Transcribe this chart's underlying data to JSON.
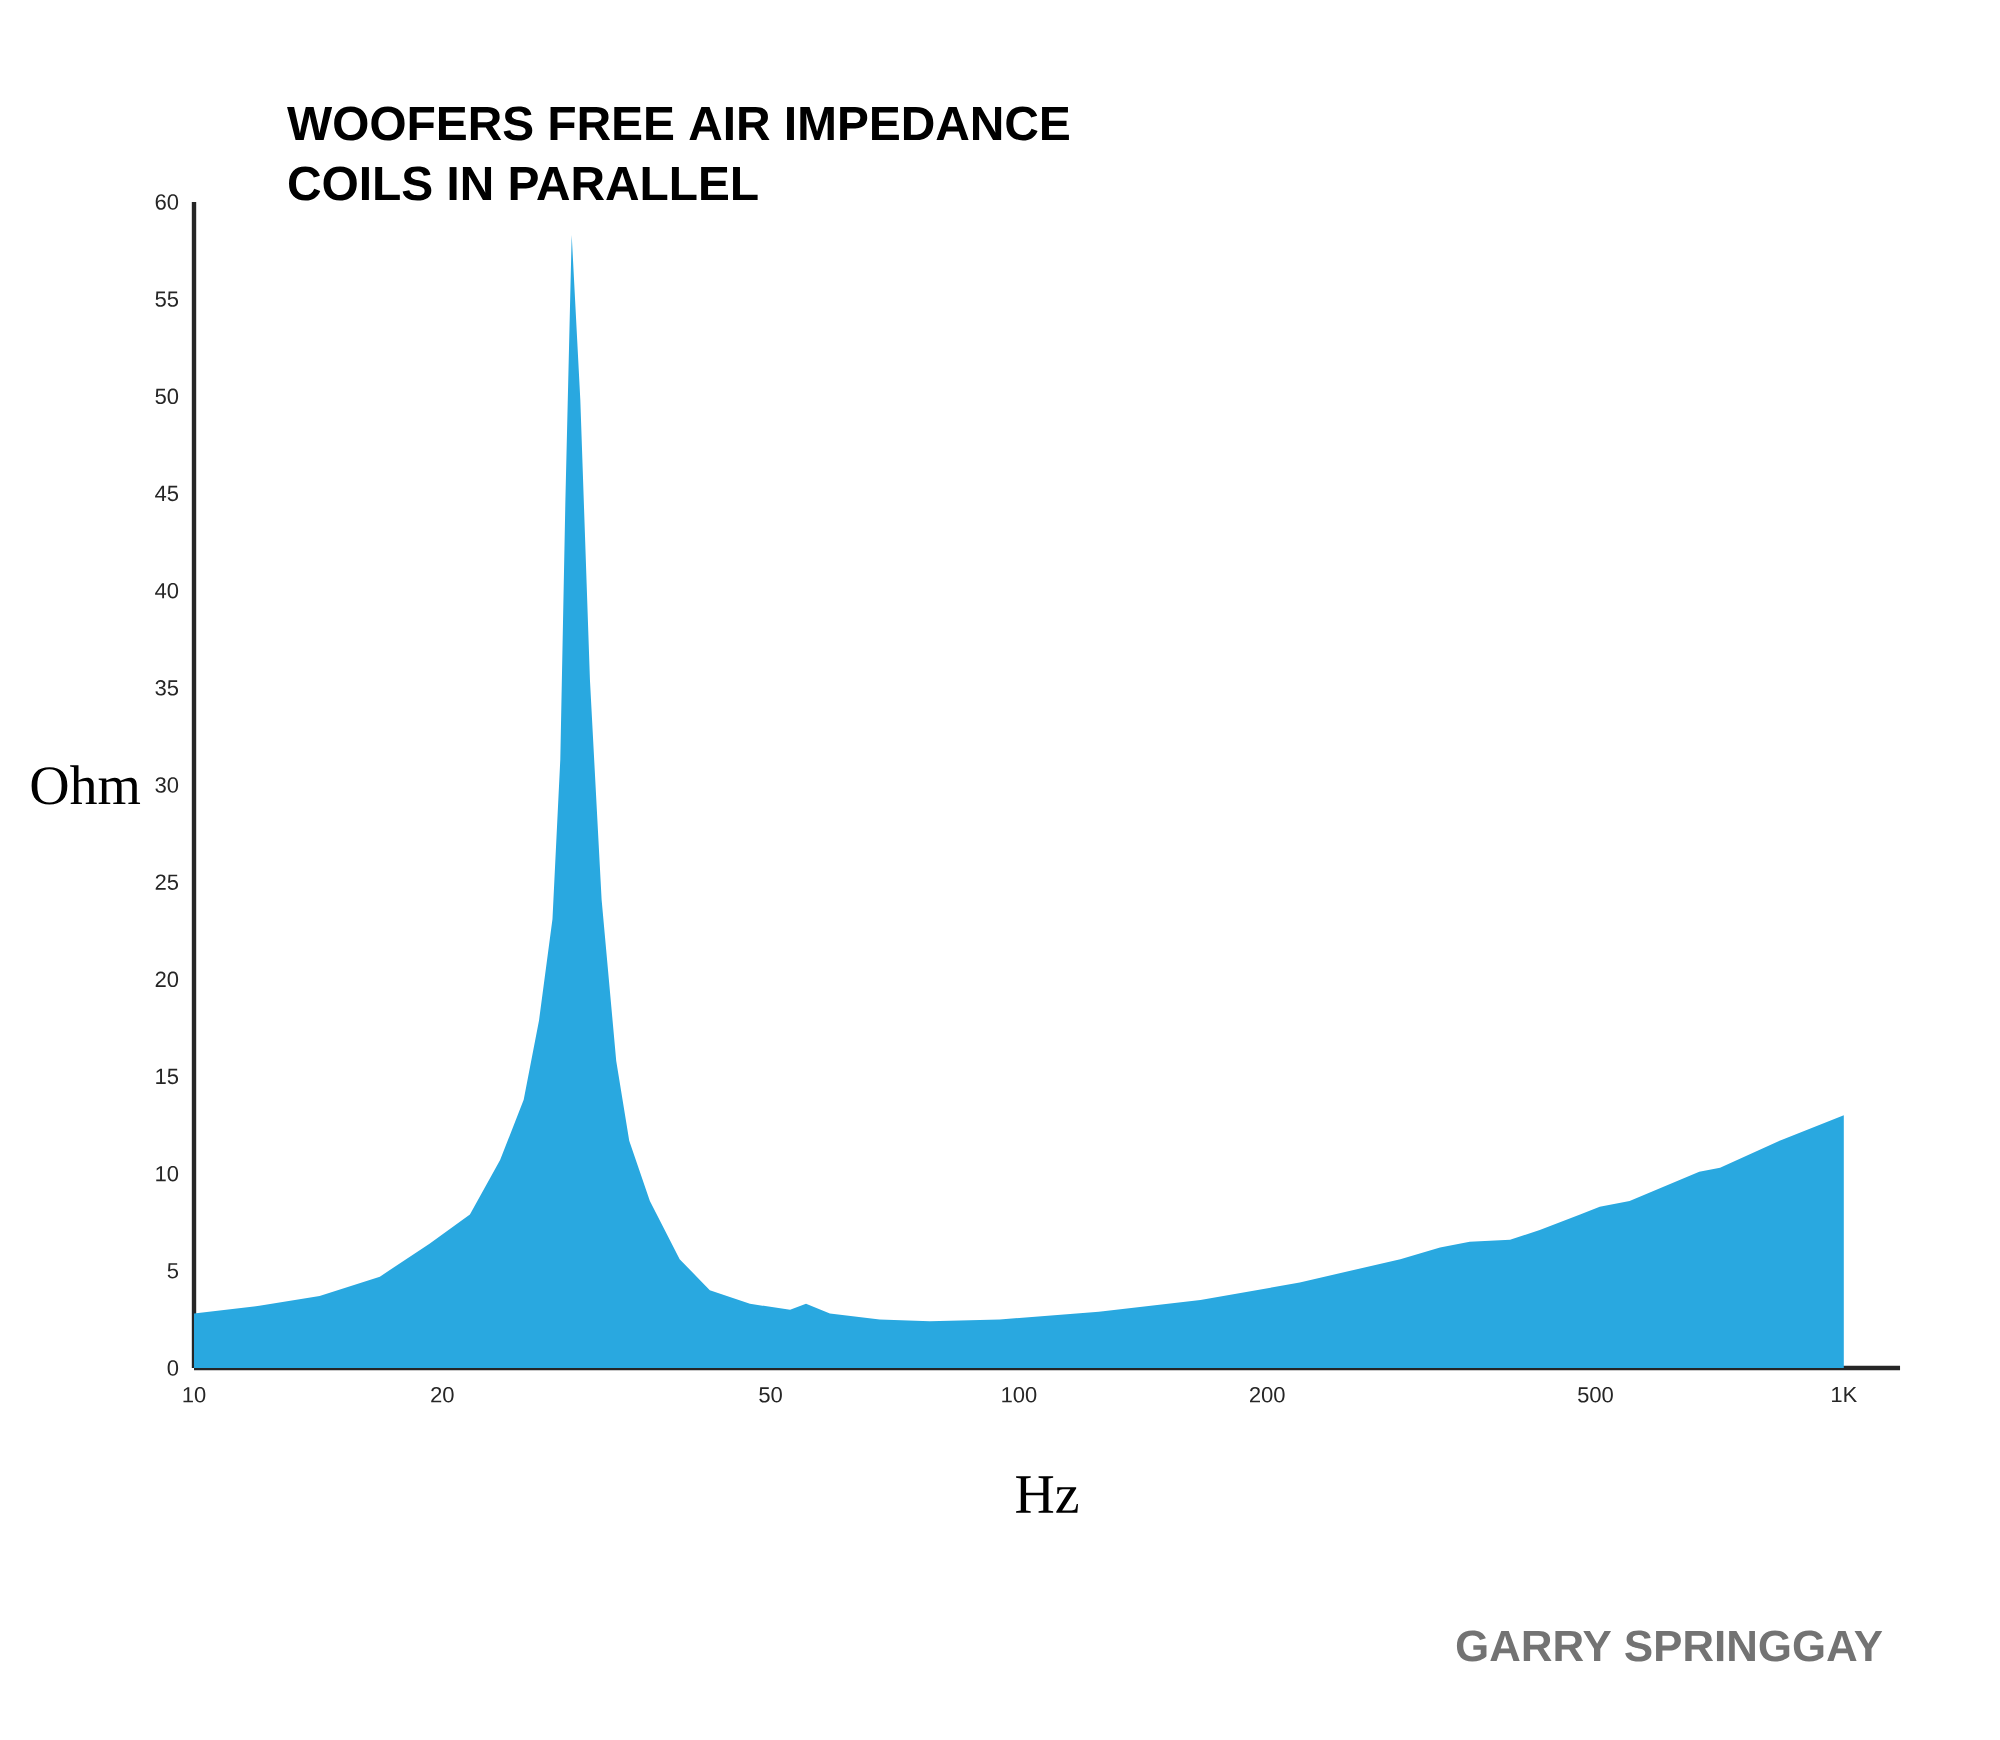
{
  "chart_data": {
    "type": "area",
    "title": "WOOFERS FREE AIR IMPEDANCE",
    "subtitle": "COILS IN PARALLEL",
    "xlabel": "Hz",
    "ylabel": "Ohm",
    "annotations": [
      "GARRY SPRINGGAY"
    ],
    "log": "x",
    "color": "#29a8e0",
    "x": [
      10,
      12.0,
      14.2,
      16.8,
      19.3,
      21.6,
      23.5,
      25.1,
      26.2,
      27.2,
      27.8,
      28.2,
      28.7,
      29.4,
      30.2,
      31.2,
      32.5,
      33.7,
      35.7,
      38.8,
      42.2,
      47.2,
      52.8,
      55.2,
      59.0,
      67.8,
      78.0,
      94.8,
      125,
      166,
      219,
      290,
      324,
      352,
      394,
      428,
      479,
      506,
      550,
      668,
      708,
      836,
      1000
    ],
    "values": [
      2.8,
      3.2,
      3.7,
      4.7,
      6.4,
      7.9,
      10.7,
      13.8,
      17.9,
      23.1,
      31.3,
      44.7,
      58.3,
      49.8,
      35.4,
      24.1,
      15.8,
      11.7,
      8.6,
      5.6,
      4.0,
      3.3,
      3.0,
      3.3,
      2.8,
      2.5,
      2.4,
      2.5,
      2.9,
      3.5,
      4.4,
      5.6,
      6.2,
      6.5,
      6.6,
      7.1,
      7.9,
      8.3,
      8.6,
      10.1,
      10.3,
      11.7,
      13.0
    ],
    "xlim": [
      10,
      1170
    ],
    "ylim": [
      0,
      60
    ],
    "xticks": [
      10,
      20,
      50,
      100,
      200,
      500,
      {
        "value": 1000,
        "label": "1K"
      }
    ],
    "yticks": [
      0,
      5,
      10,
      15,
      20,
      25,
      30,
      35,
      40,
      45,
      50,
      55,
      60
    ]
  }
}
